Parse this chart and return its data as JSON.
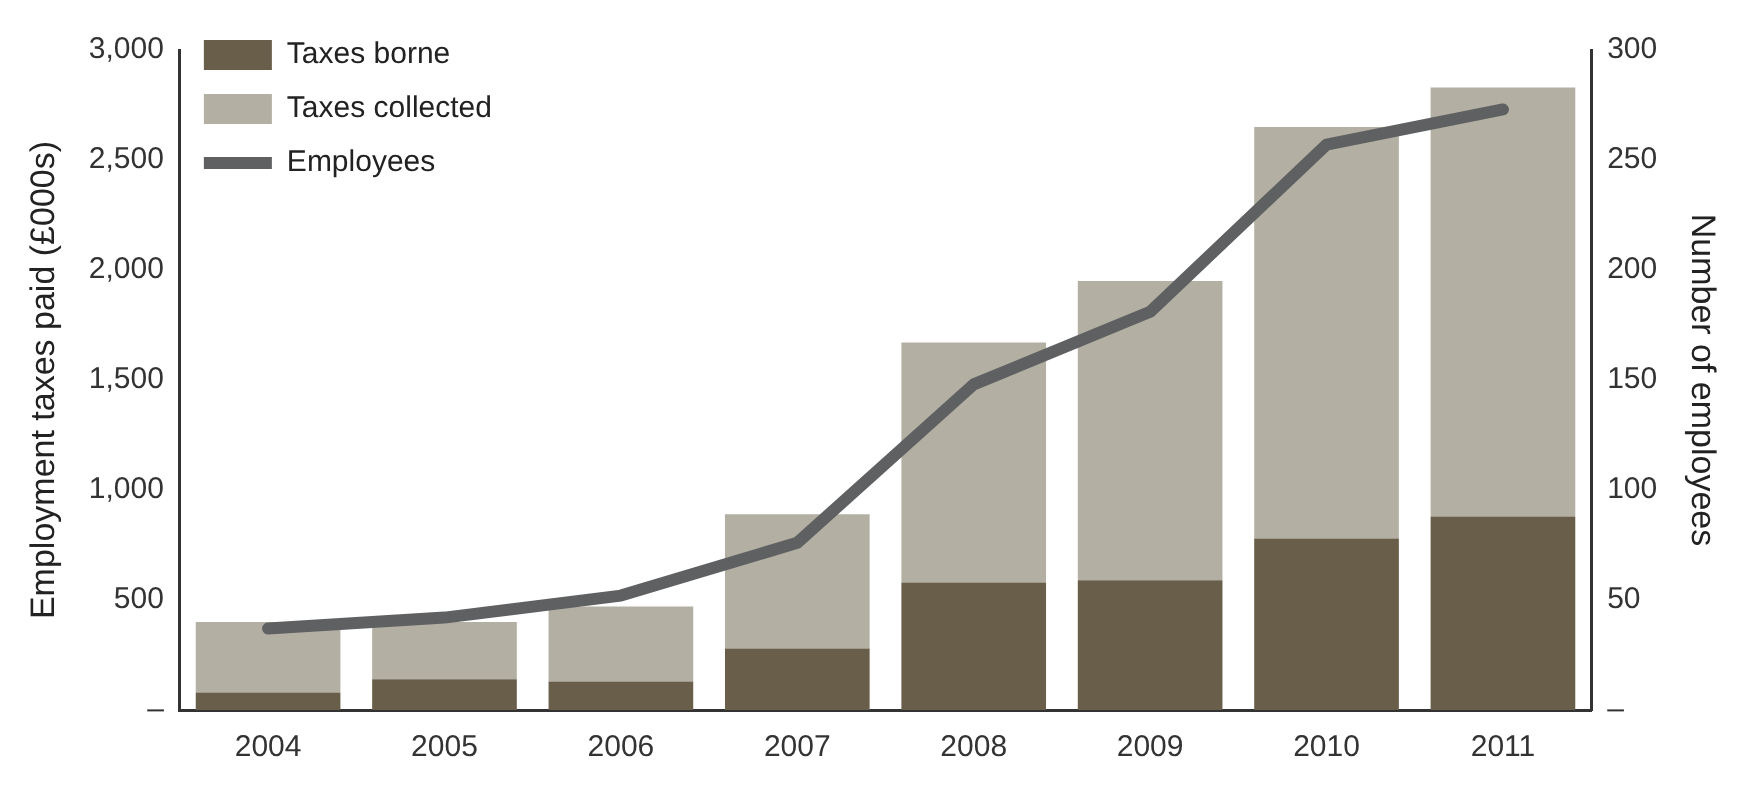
{
  "chart_data": {
    "type": "bar",
    "stacked": true,
    "ylabel": "Employment taxes paid (£000s)",
    "y2label": "Number of employees",
    "categories": [
      "2004",
      "2005",
      "2006",
      "2007",
      "2008",
      "2009",
      "2010",
      "2011"
    ],
    "series": [
      {
        "name": "Taxes borne",
        "color": "#695e4a",
        "values": [
          80,
          140,
          130,
          280,
          580,
          590,
          780,
          880
        ]
      },
      {
        "name": "Taxes collected",
        "color": "#b3afa3",
        "values": [
          320,
          260,
          340,
          610,
          1090,
          1360,
          1870,
          1950
        ]
      },
      {
        "name": "Employees",
        "type": "line",
        "axis": "y2",
        "color": "#5f6062",
        "values": [
          37,
          42,
          52,
          76,
          148,
          181,
          257,
          273
        ]
      }
    ],
    "ylim": [
      0,
      3000
    ],
    "yticks": [
      {
        "value": 0,
        "label": "–"
      },
      500,
      {
        "value": 1000,
        "label": "1,000"
      },
      {
        "value": 1500,
        "label": "1,500"
      },
      {
        "value": 2000,
        "label": "2,000"
      },
      {
        "value": 2500,
        "label": "2,500"
      },
      {
        "value": 3000,
        "label": "3,000"
      }
    ],
    "y2lim": [
      0,
      300
    ],
    "y2ticks": [
      {
        "value": 0,
        "label": "–"
      },
      50,
      100,
      150,
      200,
      250,
      300
    ],
    "grid": false,
    "legend": "top left",
    "marker": "none"
  }
}
